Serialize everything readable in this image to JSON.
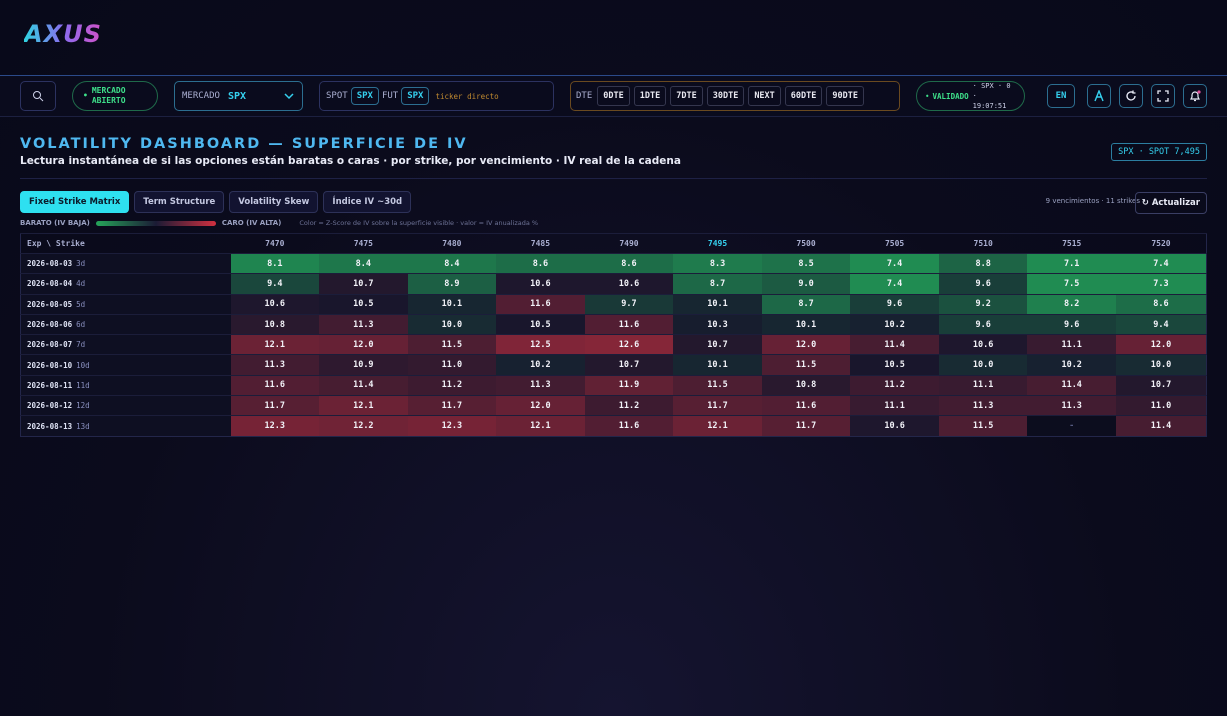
{
  "header": {
    "logo": "AXUS"
  },
  "toolbar": {
    "market_status": "MERCADO ABIERTO",
    "market_label": "MERCADO",
    "market_value": "SPX",
    "spot_label": "SPOT",
    "spot_value": "SPX",
    "fut_label": "FUT",
    "fut_value": "SPX",
    "ticker_placeholder": "ticker directo",
    "dte_label": "DTE",
    "dte_options": [
      "0DTE",
      "1DTE",
      "7DTE",
      "30DTE",
      "NEXT",
      "60DTE",
      "90DTE"
    ],
    "status": "VALIDADO",
    "status_detail": "· SPX · 0 · 19:07:51",
    "language": "EN"
  },
  "dashboard": {
    "title": "VOLATILITY DASHBOARD — SUPERFICIE DE IV",
    "subtitle": "Lectura instantánea de si las opciones están baratas o caras · por strike, por vencimiento · IV real de la cadena",
    "badge": "SPX · SPOT 7,495",
    "tabs": [
      "Fixed Strike Matrix",
      "Term Structure",
      "Volatility Skew",
      "Índice IV ~30d"
    ],
    "summary": "9 vencimientos · 11 strikes",
    "refresh": "↻ Actualizar",
    "legend": {
      "low": "BARATO (IV BAJA)",
      "high": "CARO (IV ALTA)",
      "note": "Color = Z-Score de IV sobre la superficie visible · valor = IV anualizada %"
    }
  },
  "table": {
    "corner": "Exp \\ Strike",
    "strikes": [
      7470,
      7475,
      7480,
      7485,
      7490,
      7495,
      7500,
      7505,
      7510,
      7515,
      7520
    ],
    "rows": [
      {
        "expiry": "2026-08-03",
        "dte": "3d",
        "values": [
          "8.1",
          "8.4",
          "8.4",
          "8.6",
          "8.6",
          "8.3",
          "8.5",
          "7.4",
          "8.8",
          "7.1",
          "7.4"
        ]
      },
      {
        "expiry": "2026-08-04",
        "dte": "4d",
        "values": [
          "9.4",
          "10.7",
          "8.9",
          "10.6",
          "10.6",
          "8.7",
          "9.0",
          "7.4",
          "9.6",
          "7.5",
          "7.3"
        ]
      },
      {
        "expiry": "2026-08-05",
        "dte": "5d",
        "values": [
          "10.6",
          "10.5",
          "10.1",
          "11.6",
          "9.7",
          "10.1",
          "8.7",
          "9.6",
          "9.2",
          "8.2",
          "8.6"
        ]
      },
      {
        "expiry": "2026-08-06",
        "dte": "6d",
        "values": [
          "10.8",
          "11.3",
          "10.0",
          "10.5",
          "11.6",
          "10.3",
          "10.1",
          "10.2",
          "9.6",
          "9.6",
          "9.4"
        ]
      },
      {
        "expiry": "2026-08-07",
        "dte": "7d",
        "values": [
          "12.1",
          "12.0",
          "11.5",
          "12.5",
          "12.6",
          "10.7",
          "12.0",
          "11.4",
          "10.6",
          "11.1",
          "12.0"
        ]
      },
      {
        "expiry": "2026-08-10",
        "dte": "10d",
        "values": [
          "11.3",
          "10.9",
          "11.0",
          "10.2",
          "10.7",
          "10.1",
          "11.5",
          "10.5",
          "10.0",
          "10.2",
          "10.0"
        ]
      },
      {
        "expiry": "2026-08-11",
        "dte": "11d",
        "values": [
          "11.6",
          "11.4",
          "11.2",
          "11.3",
          "11.9",
          "11.5",
          "10.8",
          "11.2",
          "11.1",
          "11.4",
          "10.7"
        ]
      },
      {
        "expiry": "2026-08-12",
        "dte": "12d",
        "values": [
          "11.7",
          "12.1",
          "11.7",
          "12.0",
          "11.2",
          "11.7",
          "11.6",
          "11.1",
          "11.3",
          "11.3",
          "11.0"
        ]
      },
      {
        "expiry": "2026-08-13",
        "dte": "13d",
        "values": [
          "12.3",
          "12.2",
          "12.3",
          "12.1",
          "11.6",
          "12.1",
          "11.7",
          "10.6",
          "11.5",
          "-",
          "11.4"
        ]
      }
    ]
  }
}
